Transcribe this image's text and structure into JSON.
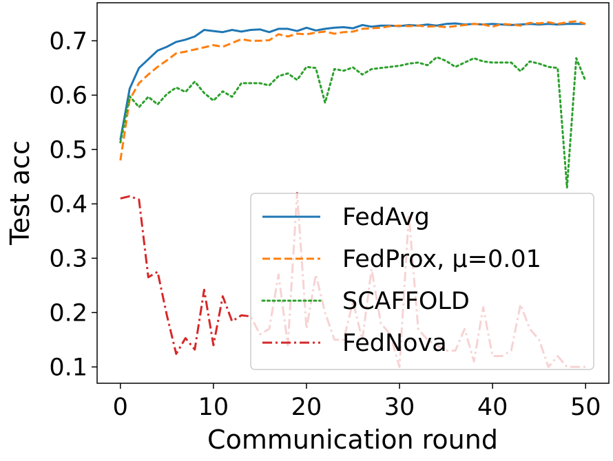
{
  "chart_data": {
    "type": "line",
    "title": "",
    "xlabel": "Communication round",
    "ylabel": "Test acc",
    "xlim": [
      -2.5,
      52.5
    ],
    "ylim": [
      0.07,
      0.77
    ],
    "xticks": [
      0,
      10,
      20,
      30,
      40,
      50
    ],
    "xtick_labels": [
      "0",
      "10",
      "20",
      "30",
      "40",
      "50"
    ],
    "yticks": [
      0.1,
      0.2,
      0.3,
      0.4,
      0.5,
      0.6,
      0.7
    ],
    "ytick_labels": [
      "0.1",
      "0.2",
      "0.3",
      "0.4",
      "0.5",
      "0.6",
      "0.7"
    ],
    "grid": false,
    "legend_position": "lower-right",
    "x": [
      0,
      1,
      2,
      3,
      4,
      5,
      6,
      7,
      8,
      9,
      10,
      11,
      12,
      13,
      14,
      15,
      16,
      17,
      18,
      19,
      20,
      21,
      22,
      23,
      24,
      25,
      26,
      27,
      28,
      29,
      30,
      31,
      32,
      33,
      34,
      35,
      36,
      37,
      38,
      39,
      40,
      41,
      42,
      43,
      44,
      45,
      46,
      47,
      48,
      49,
      50
    ],
    "series": [
      {
        "name": "FedAvg",
        "color": "#1f77b4",
        "dash": "solid",
        "values": [
          0.518,
          0.612,
          0.65,
          0.666,
          0.682,
          0.689,
          0.698,
          0.702,
          0.708,
          0.72,
          0.718,
          0.716,
          0.72,
          0.717,
          0.72,
          0.721,
          0.716,
          0.722,
          0.722,
          0.718,
          0.724,
          0.719,
          0.722,
          0.724,
          0.725,
          0.723,
          0.729,
          0.726,
          0.728,
          0.728,
          0.727,
          0.729,
          0.728,
          0.73,
          0.728,
          0.731,
          0.732,
          0.73,
          0.731,
          0.73,
          0.731,
          0.73,
          0.729,
          0.73,
          0.731,
          0.73,
          0.731,
          0.73,
          0.731,
          0.731,
          0.731
        ]
      },
      {
        "name": "FedProx, μ=0.01",
        "color": "#ff7f0e",
        "dash": "dashed",
        "values": [
          0.48,
          0.592,
          0.622,
          0.638,
          0.652,
          0.664,
          0.677,
          0.68,
          0.684,
          0.688,
          0.692,
          0.689,
          0.696,
          0.703,
          0.7,
          0.7,
          0.701,
          0.712,
          0.708,
          0.713,
          0.712,
          0.715,
          0.717,
          0.713,
          0.716,
          0.717,
          0.722,
          0.723,
          0.724,
          0.727,
          0.728,
          0.727,
          0.728,
          0.726,
          0.727,
          0.725,
          0.727,
          0.729,
          0.731,
          0.73,
          0.726,
          0.731,
          0.73,
          0.728,
          0.733,
          0.732,
          0.734,
          0.731,
          0.734,
          0.736,
          0.731
        ]
      },
      {
        "name": "SCAFFOLD",
        "color": "#2ca02c",
        "dash": "dotted",
        "values": [
          0.513,
          0.598,
          0.578,
          0.597,
          0.583,
          0.602,
          0.614,
          0.606,
          0.625,
          0.604,
          0.59,
          0.607,
          0.597,
          0.622,
          0.622,
          0.622,
          0.618,
          0.635,
          0.64,
          0.628,
          0.652,
          0.65,
          0.586,
          0.648,
          0.645,
          0.651,
          0.638,
          0.648,
          0.65,
          0.652,
          0.654,
          0.658,
          0.66,
          0.655,
          0.67,
          0.663,
          0.652,
          0.66,
          0.668,
          0.662,
          0.66,
          0.66,
          0.66,
          0.644,
          0.662,
          0.658,
          0.652,
          0.65,
          0.43,
          0.668,
          0.626
        ]
      },
      {
        "name": "FedNova",
        "color": "#d62728",
        "dash": "dashdot",
        "values": [
          0.41,
          0.414,
          0.408,
          0.265,
          0.275,
          0.195,
          0.124,
          0.153,
          0.132,
          0.242,
          0.14,
          0.23,
          0.184,
          0.195,
          0.193,
          0.16,
          0.17,
          0.27,
          0.14,
          0.42,
          0.17,
          0.27,
          0.2,
          0.15,
          0.15,
          0.22,
          0.15,
          0.28,
          0.18,
          0.16,
          0.1,
          0.38,
          0.17,
          0.15,
          0.14,
          0.13,
          0.13,
          0.17,
          0.11,
          0.21,
          0.12,
          0.12,
          0.13,
          0.215,
          0.17,
          0.15,
          0.1,
          0.12,
          0.1,
          0.1,
          0.1
        ]
      }
    ]
  }
}
